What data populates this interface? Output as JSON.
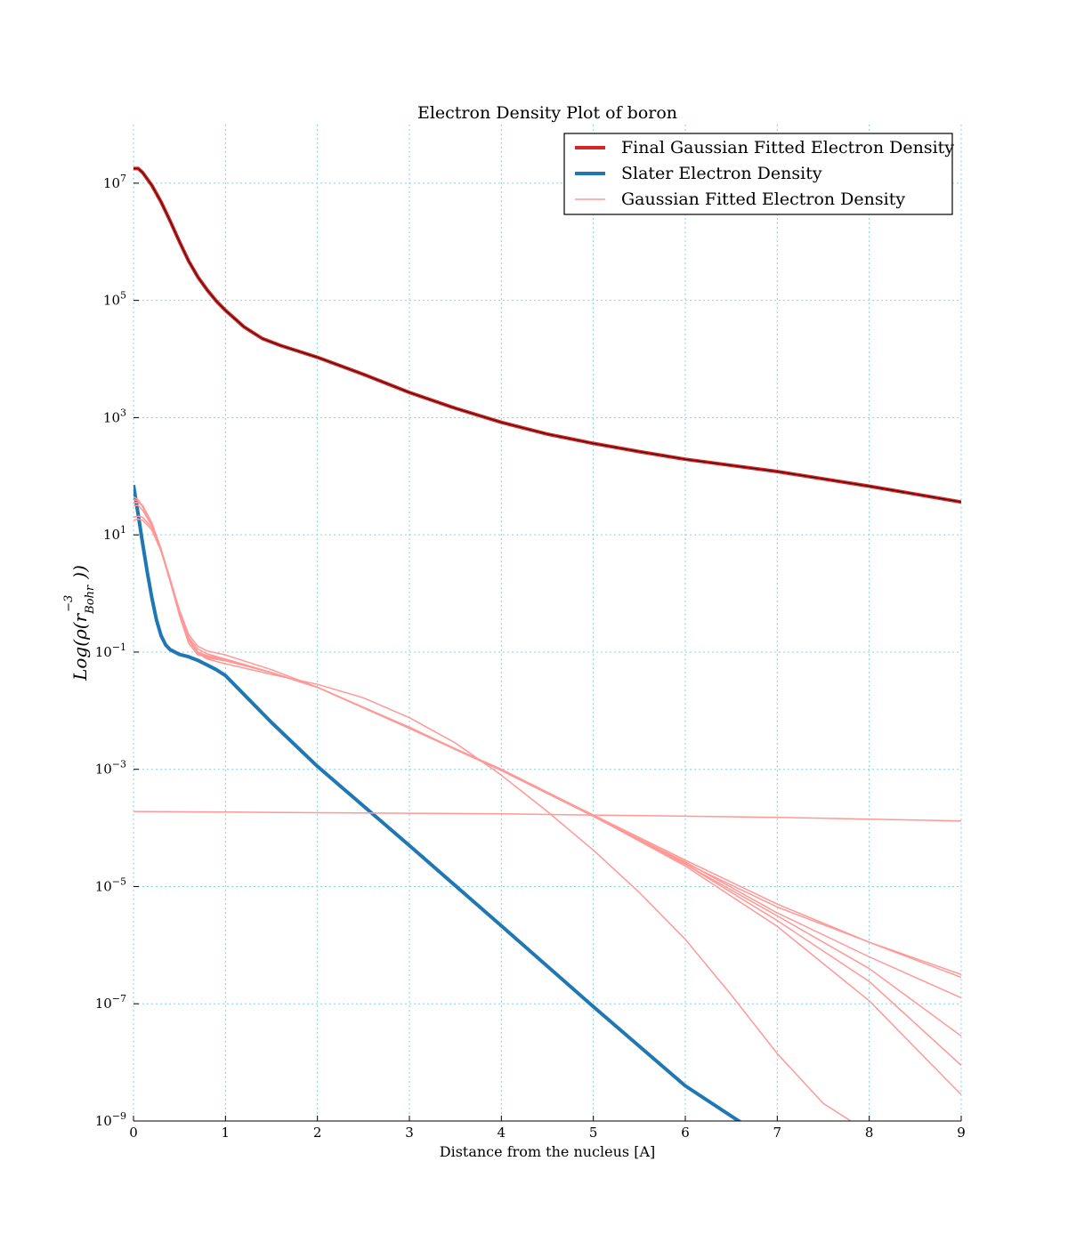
{
  "chart_data": {
    "type": "line",
    "title": "Electron Density Plot of boron",
    "xlabel": "Distance from the nucleus [A]",
    "ylabel": "Log(ρ(r_Bohr^-3))",
    "xlim": [
      0,
      9
    ],
    "ylim_log10": [
      -9,
      8
    ],
    "yscale": "log",
    "grid": true,
    "legend_position": "top-right",
    "x_ticks": [
      "0",
      "1",
      "2",
      "3",
      "4",
      "5",
      "6",
      "7",
      "8",
      "9"
    ],
    "y_ticks": [
      {
        "exp": 7,
        "label": "10^7"
      },
      {
        "exp": 5,
        "label": "10^5"
      },
      {
        "exp": 3,
        "label": "10^3"
      },
      {
        "exp": 1,
        "label": "10^1"
      },
      {
        "exp": -1,
        "label": "10^-1"
      },
      {
        "exp": -3,
        "label": "10^-3"
      },
      {
        "exp": -5,
        "label": "10^-5"
      },
      {
        "exp": -7,
        "label": "10^-7"
      },
      {
        "exp": -9,
        "label": "10^-9"
      }
    ],
    "legend": [
      {
        "label": "Final Gaussian Fitted Electron Density",
        "color": "#d62728",
        "style": "thick"
      },
      {
        "label": "Slater Electron Density",
        "color": "#1f77b4",
        "style": "thick"
      },
      {
        "label": "Gaussian Fitted Electron Density",
        "color": "#ff9896",
        "style": "thin"
      }
    ],
    "series": [
      {
        "name": "Final Gaussian Fitted Electron Density",
        "color": "#d62728",
        "kind": "final",
        "x": [
          0,
          0.05,
          0.1,
          0.2,
          0.3,
          0.4,
          0.5,
          0.6,
          0.7,
          0.8,
          0.9,
          1.0,
          1.2,
          1.4,
          1.6,
          2.0,
          2.5,
          3.0,
          3.5,
          4.0,
          4.5,
          5.0,
          5.5,
          6.0,
          7.0,
          8.0,
          9.0
        ],
        "log10y": [
          7.25,
          7.25,
          7.18,
          6.96,
          6.68,
          6.35,
          6.0,
          5.67,
          5.4,
          5.18,
          4.99,
          4.83,
          4.55,
          4.35,
          4.23,
          4.03,
          3.74,
          3.43,
          3.16,
          2.92,
          2.72,
          2.56,
          2.42,
          2.29,
          2.08,
          1.83,
          1.56
        ]
      },
      {
        "name": "Slater Electron Density",
        "color": "#1f77b4",
        "kind": "slater",
        "x": [
          0,
          0.05,
          0.1,
          0.15,
          0.2,
          0.25,
          0.3,
          0.35,
          0.4,
          0.45,
          0.5,
          0.6,
          0.7,
          0.8,
          0.9,
          1.0,
          1.5,
          2.0,
          3.0,
          4.0,
          5.0,
          6.0,
          6.6
        ],
        "log10y": [
          1.85,
          1.35,
          0.85,
          0.36,
          -0.08,
          -0.45,
          -0.72,
          -0.88,
          -0.96,
          -1.0,
          -1.04,
          -1.08,
          -1.14,
          -1.22,
          -1.3,
          -1.4,
          -2.2,
          -2.95,
          -4.3,
          -5.67,
          -7.05,
          -8.4,
          -9.02
        ]
      },
      {
        "name": "",
        "color": "#ff9896",
        "kind": "fit",
        "x": [
          0,
          0.05,
          0.1,
          0.2,
          0.3,
          0.4,
          0.5,
          0.6,
          0.7,
          0.8,
          1.0,
          1.5,
          2.0,
          3.0,
          4.0,
          5.0,
          6.0,
          7.0,
          8.0,
          9.0
        ],
        "log10y": [
          1.65,
          1.6,
          1.48,
          1.15,
          0.72,
          0.22,
          -0.28,
          -0.7,
          -0.9,
          -0.98,
          -1.05,
          -1.3,
          -1.6,
          -2.3,
          -3.0,
          -3.78,
          -4.55,
          -5.3,
          -5.95,
          -6.5
        ]
      },
      {
        "name": "",
        "color": "#ff9896",
        "kind": "fit",
        "x": [
          0,
          0.05,
          0.1,
          0.2,
          0.3,
          0.4,
          0.5,
          0.6,
          0.7,
          0.8,
          1.0,
          1.5,
          2.0,
          3.0,
          4.0,
          5.0,
          6.0,
          7.0,
          8.0,
          9.0
        ],
        "log10y": [
          1.5,
          1.5,
          1.42,
          1.15,
          0.75,
          0.25,
          -0.3,
          -0.75,
          -0.95,
          -1.03,
          -1.12,
          -1.35,
          -1.6,
          -2.3,
          -3.0,
          -3.8,
          -4.6,
          -5.35,
          -5.95,
          -6.55
        ]
      },
      {
        "name": "",
        "color": "#ff9896",
        "kind": "fit",
        "x": [
          0,
          0.05,
          0.1,
          0.2,
          0.3,
          0.4,
          0.5,
          0.6,
          0.7,
          0.8,
          1.0,
          1.5,
          2.0,
          3.0,
          4.0,
          5.0,
          6.0,
          7.0,
          8.0,
          9.0
        ],
        "log10y": [
          1.25,
          1.27,
          1.25,
          1.08,
          0.72,
          0.2,
          -0.38,
          -0.85,
          -1.05,
          -1.08,
          -1.12,
          -1.35,
          -1.6,
          -2.3,
          -3.02,
          -3.8,
          -4.58,
          -5.45,
          -6.2,
          -6.9
        ]
      },
      {
        "name": "",
        "color": "#ff9896",
        "kind": "fit",
        "x": [
          0,
          0.05,
          0.1,
          0.2,
          0.3,
          0.4,
          0.5,
          0.6,
          0.7,
          0.8,
          1.0,
          1.5,
          2.0,
          3.0,
          4.0,
          5.0,
          6.0,
          7.0,
          8.0,
          9.0
        ],
        "log10y": [
          1.6,
          1.58,
          1.5,
          1.18,
          0.75,
          0.22,
          -0.32,
          -0.78,
          -1.0,
          -1.1,
          -1.15,
          -1.35,
          -1.6,
          -2.28,
          -3.02,
          -3.8,
          -4.62,
          -5.5,
          -6.4,
          -7.55
        ]
      },
      {
        "name": "",
        "color": "#ff9896",
        "kind": "fit",
        "x": [
          0,
          0.05,
          0.1,
          0.2,
          0.3,
          0.4,
          0.5,
          0.6,
          0.7,
          0.8,
          1.0,
          1.5,
          2.0,
          3.0,
          4.0,
          5.0,
          6.0,
          7.0,
          8.0,
          9.0
        ],
        "log10y": [
          1.3,
          1.32,
          1.3,
          1.12,
          0.74,
          0.2,
          -0.36,
          -0.8,
          -1.0,
          -1.06,
          -1.12,
          -1.35,
          -1.6,
          -2.3,
          -3.02,
          -3.8,
          -4.62,
          -5.58,
          -6.62,
          -8.05
        ]
      },
      {
        "name": "",
        "color": "#ff9896",
        "kind": "fit",
        "x": [
          0,
          0.05,
          0.1,
          0.2,
          0.3,
          0.4,
          0.5,
          0.6,
          0.7,
          0.8,
          1.0,
          1.5,
          2.0,
          3.0,
          4.0,
          5.0,
          6.0,
          7.0,
          8.0,
          9.0
        ],
        "log10y": [
          1.55,
          1.55,
          1.5,
          1.2,
          0.76,
          0.2,
          -0.34,
          -0.78,
          -1.0,
          -1.08,
          -1.14,
          -1.35,
          -1.6,
          -2.3,
          -3.02,
          -3.8,
          -4.65,
          -5.68,
          -6.95,
          -8.55
        ]
      },
      {
        "name": "",
        "color": "#ff9896",
        "kind": "fit",
        "x": [
          0,
          0.05,
          0.1,
          0.2,
          0.3,
          0.4,
          0.5,
          0.6,
          0.7,
          0.8,
          1.0,
          1.5,
          2.0,
          2.5,
          3.0,
          3.5,
          4.0,
          4.5,
          5.0,
          5.5,
          6.0,
          6.5,
          7.0,
          7.5,
          7.8
        ],
        "log10y": [
          1.55,
          1.55,
          1.5,
          1.2,
          0.76,
          0.2,
          -0.35,
          -0.8,
          -1.02,
          -1.12,
          -1.2,
          -1.38,
          -1.55,
          -1.78,
          -2.12,
          -2.55,
          -3.1,
          -3.72,
          -4.38,
          -5.1,
          -5.9,
          -6.85,
          -7.85,
          -8.7,
          -9.0
        ]
      },
      {
        "name": "",
        "color": "#ff9896",
        "kind": "fit",
        "x": [
          0,
          1,
          2,
          3,
          4,
          5,
          6,
          7,
          8,
          9
        ],
        "log10y": [
          -3.72,
          -3.73,
          -3.74,
          -3.75,
          -3.76,
          -3.78,
          -3.8,
          -3.82,
          -3.85,
          -3.88
        ]
      }
    ]
  }
}
